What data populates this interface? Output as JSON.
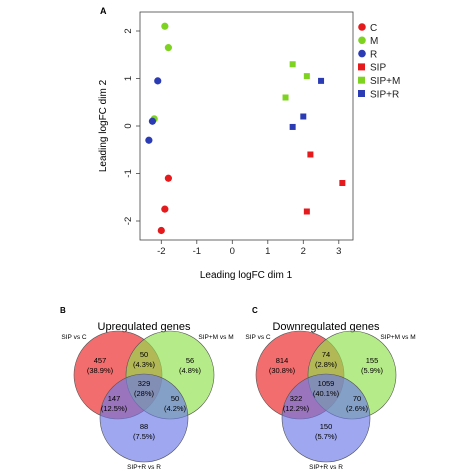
{
  "panel_a": {
    "label": "A",
    "chart_data": {
      "type": "scatter",
      "xlabel": "Leading logFC dim 1",
      "ylabel": "Leading logFC dim 2",
      "xlim": [
        -2.6,
        3.4
      ],
      "ylim": [
        -2.4,
        2.4
      ],
      "xticks": [
        "-2",
        "-1",
        "0",
        "1",
        "2",
        "3"
      ],
      "xtick_values": [
        -2,
        -1,
        0,
        1,
        2,
        3
      ],
      "yticks": [
        "-2",
        "-1",
        "0",
        "1",
        "2"
      ],
      "ytick_values": [
        -2,
        -1,
        0,
        1,
        2
      ],
      "legend_position": "right",
      "series": [
        {
          "name": "C",
          "marker": "circle",
          "color": "#e41a1c",
          "x": [
            -1.8,
            -1.9,
            -2.0
          ],
          "y": [
            -1.1,
            -1.75,
            -2.2
          ]
        },
        {
          "name": "M",
          "marker": "circle",
          "color": "#7ed321",
          "x": [
            -1.9,
            -1.8,
            -2.2
          ],
          "y": [
            2.1,
            1.65,
            0.15
          ]
        },
        {
          "name": "R",
          "marker": "circle",
          "color": "#2b3bb4",
          "x": [
            -2.1,
            -2.25,
            -2.35
          ],
          "y": [
            0.95,
            0.1,
            -0.3
          ]
        },
        {
          "name": "SIP",
          "marker": "square",
          "color": "#e41a1c",
          "x": [
            2.2,
            3.1,
            2.1
          ],
          "y": [
            -0.6,
            -1.2,
            -1.8
          ]
        },
        {
          "name": "SIP+M",
          "marker": "square",
          "color": "#7ed321",
          "x": [
            1.7,
            2.1,
            1.5
          ],
          "y": [
            1.3,
            1.05,
            0.6
          ]
        },
        {
          "name": "SIP+R",
          "marker": "square",
          "color": "#2b3bb4",
          "x": [
            2.5,
            2.0,
            1.7
          ],
          "y": [
            0.95,
            0.2,
            -0.02
          ]
        }
      ]
    }
  },
  "panel_b": {
    "label": "B",
    "title": "Upregulated genes",
    "set_labels": [
      "SIP vs C",
      "SIP+M vs M",
      "SIP+R vs R"
    ],
    "regions": {
      "a_only": [
        "457",
        "(38.9%)"
      ],
      "ab": [
        "50",
        "(4.3%)"
      ],
      "b_only": [
        "56",
        "(4.8%)"
      ],
      "abc": [
        "329",
        "(28%)"
      ],
      "ac": [
        "147",
        "(12.5%)"
      ],
      "bc": [
        "50",
        "(4.2%)"
      ],
      "c_only": [
        "88",
        "(7.5%)"
      ]
    }
  },
  "panel_c": {
    "label": "C",
    "title": "Downregulated genes",
    "set_labels": [
      "SIP vs C",
      "SIP+M vs M",
      "SIP+R vs R"
    ],
    "regions": {
      "a_only": [
        "814",
        "(30.8%)"
      ],
      "ab": [
        "74",
        "(2.8%)"
      ],
      "b_only": [
        "155",
        "(5.9%)"
      ],
      "abc": [
        "1059",
        "(40.1%)"
      ],
      "ac": [
        "322",
        "(12.2%)"
      ],
      "bc": [
        "70",
        "(2.6%)"
      ],
      "c_only": [
        "150",
        "(5.7%)"
      ]
    }
  },
  "colors": {
    "red": "#e41a1c",
    "green": "#7ed321",
    "blue": "#2b3bb4",
    "venn_red": "#ef4a4a",
    "venn_green": "#8fe04a",
    "venn_blue": "#6a78e6"
  }
}
